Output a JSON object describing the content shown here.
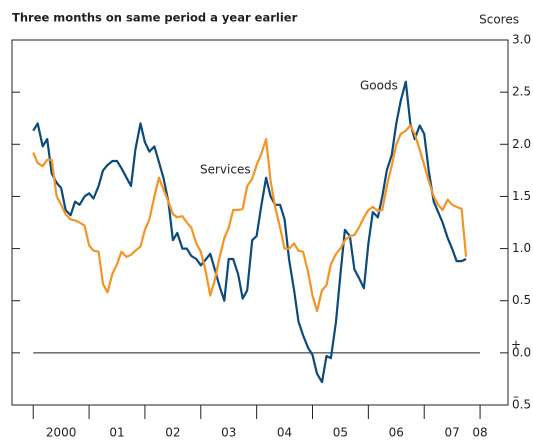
{
  "chart_data": {
    "type": "line",
    "title": "Three months on same period a year earlier",
    "y_axis_label": "Scores",
    "annotations": [
      "Goods",
      "Services",
      "+",
      "–"
    ],
    "x": [
      2000,
      2000.08,
      2000.17,
      2000.25,
      2000.33,
      2000.42,
      2000.5,
      2000.58,
      2000.67,
      2000.75,
      2000.83,
      2000.92,
      2001,
      2001.08,
      2001.17,
      2001.25,
      2001.33,
      2001.42,
      2001.5,
      2001.58,
      2001.67,
      2001.75,
      2001.83,
      2001.92,
      2002,
      2002.08,
      2002.17,
      2002.25,
      2002.33,
      2002.42,
      2002.5,
      2002.58,
      2002.67,
      2002.75,
      2002.83,
      2002.92,
      2003,
      2003.08,
      2003.17,
      2003.25,
      2003.33,
      2003.42,
      2003.5,
      2003.58,
      2003.67,
      2003.75,
      2003.83,
      2003.92,
      2004,
      2004.08,
      2004.17,
      2004.25,
      2004.33,
      2004.42,
      2004.5,
      2004.58,
      2004.67,
      2004.75,
      2004.83,
      2004.92,
      2005,
      2005.08,
      2005.17,
      2005.25,
      2005.33,
      2005.42,
      2005.5,
      2005.58,
      2005.67,
      2005.75,
      2005.83,
      2005.92,
      2006,
      2006.08,
      2006.17,
      2006.25,
      2006.33,
      2006.42,
      2006.5,
      2006.58,
      2006.67,
      2006.75,
      2006.83,
      2006.92,
      2007,
      2007.08,
      2007.17,
      2007.25,
      2007.33,
      2007.42,
      2007.5,
      2007.58,
      2007.67,
      2007.75
    ],
    "series": [
      {
        "name": "Goods",
        "color": "#0b4a7d",
        "values": [
          2.13,
          2.2,
          1.98,
          2.05,
          1.72,
          1.63,
          1.58,
          1.37,
          1.32,
          1.45,
          1.42,
          1.5,
          1.53,
          1.48,
          1.6,
          1.75,
          1.8,
          1.84,
          1.84,
          1.77,
          1.68,
          1.6,
          1.95,
          2.2,
          2.02,
          1.93,
          1.98,
          1.83,
          1.68,
          1.45,
          1.08,
          1.15,
          1.0,
          1.0,
          0.93,
          0.9,
          0.84,
          0.89,
          0.95,
          0.8,
          0.65,
          0.5,
          0.9,
          0.9,
          0.75,
          0.52,
          0.6,
          1.08,
          1.12,
          1.4,
          1.68,
          1.5,
          1.42,
          1.42,
          1.28,
          0.9,
          0.6,
          0.3,
          0.17,
          0.05,
          -0.02,
          -0.2,
          -0.28,
          -0.03,
          -0.05,
          0.3,
          0.75,
          1.18,
          1.12,
          0.8,
          0.72,
          0.62,
          1.05,
          1.35,
          1.3,
          1.5,
          1.75,
          1.9,
          2.2,
          2.42,
          2.6,
          2.2,
          2.05,
          2.18,
          2.1,
          1.75,
          1.45,
          1.35,
          1.25,
          1.1,
          1.0,
          0.88,
          0.88,
          0.9
        ]
      },
      {
        "name": "Services",
        "color": "#f39423",
        "values": [
          1.92,
          1.82,
          1.79,
          1.85,
          1.85,
          1.5,
          1.42,
          1.33,
          1.28,
          1.27,
          1.25,
          1.22,
          1.03,
          0.98,
          0.97,
          0.66,
          0.58,
          0.76,
          0.85,
          0.97,
          0.92,
          0.94,
          0.98,
          1.02,
          1.18,
          1.28,
          1.5,
          1.68,
          1.57,
          1.45,
          1.33,
          1.3,
          1.31,
          1.25,
          1.2,
          1.05,
          0.97,
          0.8,
          0.55,
          0.7,
          0.9,
          1.1,
          1.2,
          1.37,
          1.37,
          1.38,
          1.6,
          1.67,
          1.8,
          1.9,
          2.05,
          1.65,
          1.4,
          1.2,
          1.0,
          1.0,
          1.05,
          0.98,
          0.97,
          0.78,
          0.55,
          0.4,
          0.6,
          0.65,
          0.85,
          0.95,
          1.0,
          1.08,
          1.12,
          1.13,
          1.2,
          1.3,
          1.37,
          1.4,
          1.36,
          1.37,
          1.6,
          1.8,
          2.0,
          2.1,
          2.13,
          2.18,
          2.1,
          1.95,
          1.8,
          1.65,
          1.5,
          1.42,
          1.37,
          1.47,
          1.42,
          1.4,
          1.38,
          0.92
        ]
      }
    ],
    "xlim": [
      1999.62,
      2008.5
    ],
    "xticks": [
      2000,
      {
        "value": 2001,
        "label": "01"
      },
      {
        "value": 2002,
        "label": "02"
      },
      {
        "value": 2003,
        "label": "03"
      },
      {
        "value": 2004,
        "label": "04"
      },
      {
        "value": 2005,
        "label": "05"
      },
      {
        "value": 2006,
        "label": "06"
      },
      {
        "value": 2007,
        "label": "07"
      },
      {
        "value": 2008,
        "label": "08"
      }
    ],
    "ylim": [
      -0.5,
      3
    ],
    "yticks": [
      {
        "value": -0.5,
        "label": "0.5"
      },
      {
        "value": 0,
        "label": "0.0"
      },
      {
        "value": 0.5,
        "label": "0.5"
      },
      {
        "value": 1,
        "label": "1.0"
      },
      {
        "value": 1.5,
        "label": "1.5"
      },
      {
        "value": 2,
        "label": "2.0"
      },
      {
        "value": 2.5,
        "label": "2.5"
      },
      {
        "value": 3,
        "label": "3.0"
      }
    ],
    "zero_line": 0
  }
}
